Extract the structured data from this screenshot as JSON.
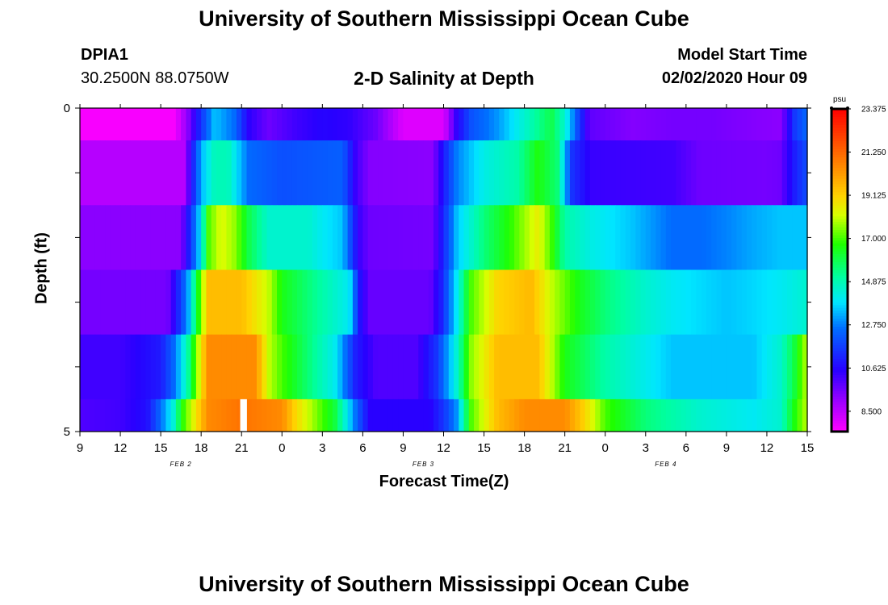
{
  "page": {
    "title_top": "University of Southern Mississippi Ocean Cube",
    "title_bottom": "University of Southern Mississippi Ocean Cube",
    "station_id": "DPIA1",
    "station_coords": "30.2500N 88.0750W",
    "model_start_label": "Model Start Time",
    "model_start_value": "02/02/2020 Hour 09"
  },
  "chart_data": {
    "type": "heatmap",
    "title": "2-D Salinity at Depth",
    "xlabel": "Forecast Time(Z)",
    "ylabel": "Depth (ft)",
    "ylim": [
      0,
      5
    ],
    "y_ticks": [
      "0",
      "5"
    ],
    "x_ticks": [
      "9",
      "12",
      "15",
      "18",
      "21",
      "0",
      "3",
      "6",
      "9",
      "12",
      "15",
      "18",
      "21",
      "0",
      "3",
      "6",
      "9",
      "12",
      "15"
    ],
    "date_labels": [
      {
        "text": "FEB 2",
        "after_tick": 2
      },
      {
        "text": "FEB 3",
        "after_tick": 8
      },
      {
        "text": "FEB 4",
        "after_tick": 14
      }
    ],
    "x_hours": [
      0,
      54
    ],
    "colorbar": {
      "unit": "psu",
      "min": 7.5,
      "max": 23.375,
      "tick_labels": [
        "23.375",
        "21.250",
        "19.125",
        "17.000",
        "14.875",
        "12.750",
        "10.625",
        "8.500"
      ]
    },
    "depth_layers": [
      "0-0.5",
      "0.5-1.5",
      "1.5-2.5",
      "2.5-3.5",
      "3.5-4.5",
      "4.5-5"
    ],
    "salinity_keyframes": [
      [
        [
          0,
          7.6
        ],
        [
          7,
          7.6
        ],
        [
          8,
          9.2
        ],
        [
          9,
          11.5
        ],
        [
          10,
          13.5
        ],
        [
          11.5,
          12.5
        ],
        [
          12.5,
          10.5
        ],
        [
          14,
          9.6
        ],
        [
          16,
          10.2
        ],
        [
          18,
          10.6
        ],
        [
          20,
          10.4
        ],
        [
          22,
          9.6
        ],
        [
          24,
          8.0
        ],
        [
          27,
          8.0
        ],
        [
          28,
          10.5
        ],
        [
          29,
          12.0
        ],
        [
          31,
          13.0
        ],
        [
          33,
          14.5
        ],
        [
          35,
          16.0
        ],
        [
          36,
          14.5
        ],
        [
          37,
          11.8
        ],
        [
          37.8,
          9.8
        ],
        [
          41,
          9.3
        ],
        [
          44,
          9.5
        ],
        [
          47,
          9.5
        ],
        [
          50,
          9.3
        ],
        [
          52,
          9.2
        ],
        [
          52.5,
          10.2
        ],
        [
          53,
          11.5
        ],
        [
          54,
          12.5
        ]
      ],
      [
        [
          0,
          8.6
        ],
        [
          7.8,
          8.6
        ],
        [
          8.2,
          10.5
        ],
        [
          9,
          13.3
        ],
        [
          10,
          14.8
        ],
        [
          11,
          14.8
        ],
        [
          12.5,
          12.5
        ],
        [
          15,
          12.0
        ],
        [
          18,
          12.2
        ],
        [
          19.5,
          12.3
        ],
        [
          20.5,
          10.2
        ],
        [
          21.5,
          9.3
        ],
        [
          26.2,
          9.2
        ],
        [
          27,
          11.0
        ],
        [
          28,
          12.8
        ],
        [
          30,
          14.2
        ],
        [
          32.5,
          15.0
        ],
        [
          34,
          16.6
        ],
        [
          35.5,
          15.5
        ],
        [
          36.5,
          11.5
        ],
        [
          38,
          10.3
        ],
        [
          44,
          10.2
        ],
        [
          46,
          9.6
        ],
        [
          51,
          9.5
        ],
        [
          52,
          9.6
        ],
        [
          53,
          11.0
        ],
        [
          54,
          12.0
        ]
      ],
      [
        [
          0,
          9.2
        ],
        [
          7.5,
          9.2
        ],
        [
          8,
          10.8
        ],
        [
          9,
          14.0
        ],
        [
          9.5,
          17.0
        ],
        [
          10.5,
          18.3
        ],
        [
          11.5,
          17.6
        ],
        [
          12.5,
          16.0
        ],
        [
          14,
          14.5
        ],
        [
          17,
          14.5
        ],
        [
          18,
          14.0
        ],
        [
          19.5,
          13.5
        ],
        [
          20.7,
          10.3
        ],
        [
          21.5,
          9.6
        ],
        [
          26.2,
          9.5
        ],
        [
          26.8,
          10.8
        ],
        [
          28,
          13.5
        ],
        [
          30,
          15.5
        ],
        [
          32,
          16.8
        ],
        [
          34,
          18.5
        ],
        [
          35,
          17.0
        ],
        [
          36,
          15.0
        ],
        [
          38,
          14.2
        ],
        [
          41,
          13.5
        ],
        [
          44,
          12.5
        ],
        [
          46,
          12.5
        ],
        [
          48,
          12.8
        ],
        [
          50,
          13.2
        ],
        [
          52,
          13.5
        ],
        [
          54,
          13.5
        ]
      ],
      [
        [
          0,
          9.5
        ],
        [
          6.5,
          9.5
        ],
        [
          7,
          10.5
        ],
        [
          8,
          13.0
        ],
        [
          9,
          17.5
        ],
        [
          9.5,
          19.5
        ],
        [
          12,
          19.5
        ],
        [
          14,
          18.0
        ],
        [
          15,
          16.5
        ],
        [
          18,
          15.0
        ],
        [
          20,
          14.0
        ],
        [
          20.8,
          10.8
        ],
        [
          21.5,
          9.7
        ],
        [
          26,
          9.7
        ],
        [
          26.8,
          11.0
        ],
        [
          28,
          14.0
        ],
        [
          29,
          17.0
        ],
        [
          31,
          19.0
        ],
        [
          33.5,
          19.6
        ],
        [
          35,
          18.0
        ],
        [
          37,
          16.5
        ],
        [
          39,
          15.5
        ],
        [
          42,
          14.5
        ],
        [
          44,
          14.0
        ],
        [
          48,
          13.5
        ],
        [
          50,
          13.7
        ],
        [
          52,
          14.0
        ],
        [
          54,
          14.5
        ]
      ],
      [
        [
          0,
          10.2
        ],
        [
          3,
          10.2
        ],
        [
          6,
          11.0
        ],
        [
          7,
          12.5
        ],
        [
          8,
          15.0
        ],
        [
          8.8,
          18.0
        ],
        [
          9.5,
          20.5
        ],
        [
          13,
          20.5
        ],
        [
          14,
          18.0
        ],
        [
          15,
          17.0
        ],
        [
          17,
          15.5
        ],
        [
          19,
          14.0
        ],
        [
          20.5,
          11.0
        ],
        [
          22,
          10.0
        ],
        [
          25,
          10.0
        ],
        [
          26.5,
          11.5
        ],
        [
          28,
          14.5
        ],
        [
          29,
          17.5
        ],
        [
          31,
          19.5
        ],
        [
          34,
          19.5
        ],
        [
          35,
          18.0
        ],
        [
          36,
          16.5
        ],
        [
          39,
          15.0
        ],
        [
          44,
          13.5
        ],
        [
          50,
          13.5
        ],
        [
          52,
          14.5
        ],
        [
          53,
          16.0
        ],
        [
          54,
          18.0
        ]
      ],
      [
        [
          0,
          10.0
        ],
        [
          3,
          10.2
        ],
        [
          5,
          10.8
        ],
        [
          6,
          12.5
        ],
        [
          7,
          14.5
        ],
        [
          7.5,
          16.5
        ],
        [
          8.5,
          18.5
        ],
        [
          9.5,
          20.5
        ],
        [
          12,
          21.0
        ],
        [
          15,
          20.5
        ],
        [
          16,
          19.0
        ],
        [
          19,
          16.0
        ],
        [
          20.5,
          12.5
        ],
        [
          21.5,
          10.5
        ],
        [
          26,
          10.5
        ],
        [
          27,
          11.5
        ],
        [
          28,
          13.0
        ],
        [
          29,
          17.0
        ],
        [
          31,
          19.5
        ],
        [
          33,
          20.5
        ],
        [
          36,
          20.5
        ],
        [
          37.5,
          19.0
        ],
        [
          39,
          17.0
        ],
        [
          42,
          15.5
        ],
        [
          46,
          14.5
        ],
        [
          50,
          14.0
        ],
        [
          52,
          14.5
        ],
        [
          53,
          16.5
        ],
        [
          54,
          18.0
        ]
      ]
    ],
    "missing_cell": {
      "layer": 5,
      "hour_start": 11.9,
      "hour_end": 12.4
    }
  }
}
